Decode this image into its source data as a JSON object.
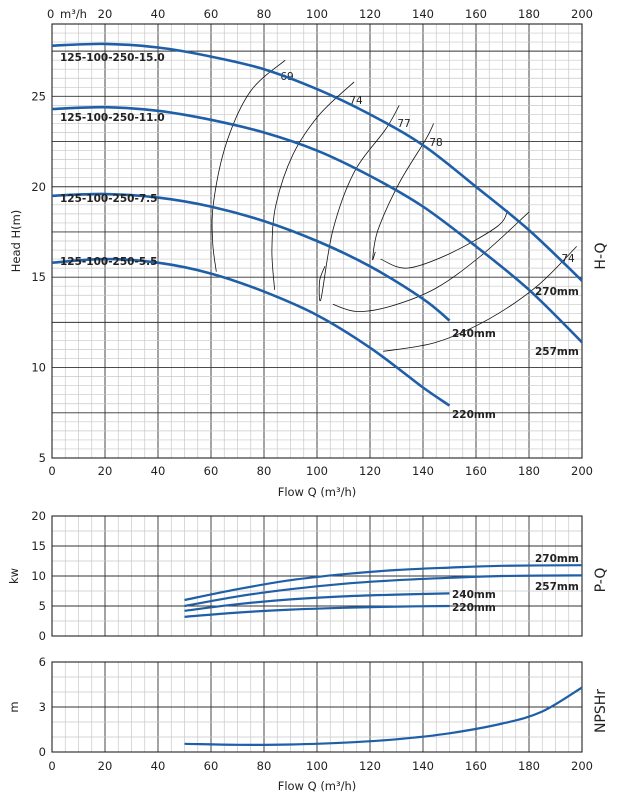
{
  "chart_data": [
    {
      "id": "hq",
      "type": "line",
      "side_title": "H-Q",
      "ylabel": "Head H(m)",
      "xlabel": "Flow Q (m³/h)",
      "top_unit": "m³/h",
      "xlim": [
        0,
        200
      ],
      "ylim": [
        5,
        29
      ],
      "x_ticks": [
        "0",
        "20",
        "40",
        "60",
        "80",
        "100",
        "120",
        "140",
        "160",
        "180",
        "200"
      ],
      "x_ticks_top": [
        "0",
        "20",
        "40",
        "60",
        "80",
        "100",
        "120",
        "140",
        "160",
        "180",
        "200"
      ],
      "y_ticks": [
        "5",
        "10",
        "15",
        "20",
        "25"
      ],
      "series": [
        {
          "name": "125-100-250-15.0",
          "impeller": "270mm",
          "line_color": "#1f5fa8",
          "x": [
            0,
            20,
            40,
            60,
            80,
            100,
            120,
            140,
            160,
            180,
            200
          ],
          "y": [
            27.8,
            27.9,
            27.7,
            27.2,
            26.5,
            25.4,
            24.0,
            22.3,
            20.0,
            17.6,
            14.8
          ]
        },
        {
          "name": "125-100-250-11.0",
          "impeller": "257mm",
          "line_color": "#1f5fa8",
          "x": [
            0,
            20,
            40,
            60,
            80,
            100,
            120,
            140,
            160,
            180,
            200
          ],
          "y": [
            24.3,
            24.4,
            24.2,
            23.7,
            23.0,
            22.0,
            20.6,
            18.9,
            16.7,
            14.3,
            11.4
          ]
        },
        {
          "name": "125-100-250-7.5",
          "impeller": "240mm",
          "line_color": "#1f5fa8",
          "x": [
            0,
            20,
            40,
            60,
            80,
            100,
            120,
            140,
            150
          ],
          "y": [
            19.5,
            19.6,
            19.4,
            18.9,
            18.1,
            17.0,
            15.6,
            13.8,
            12.6
          ]
        },
        {
          "name": "125-100-250-5.5",
          "impeller": "220mm",
          "line_color": "#1f5fa8",
          "x": [
            0,
            20,
            40,
            60,
            80,
            100,
            120,
            140,
            150
          ],
          "y": [
            15.8,
            16.0,
            15.8,
            15.2,
            14.2,
            12.9,
            11.1,
            8.9,
            7.9
          ]
        }
      ],
      "efficiency_curves": [
        {
          "label": "69",
          "x": [
            62,
            60.6,
            61,
            66,
            75,
            88
          ],
          "y": [
            15.3,
            17.0,
            19.2,
            22.5,
            25.3,
            27.0
          ]
        },
        {
          "label": "74",
          "x": [
            84,
            83,
            84.5,
            91,
            101,
            114
          ],
          "y": [
            14.3,
            16.5,
            19.0,
            21.8,
            24.0,
            25.8
          ]
        },
        {
          "label": "77",
          "x": [
            103,
            101,
            101.5,
            106,
            114,
            126,
            131
          ],
          "y": [
            15.6,
            14.8,
            13.8,
            17.6,
            20.8,
            23.2,
            24.5
          ]
        },
        {
          "label": "78",
          "x": [
            122,
            121,
            123,
            131,
            141,
            144
          ],
          "y": [
            16.4,
            16.0,
            17.6,
            20.2,
            22.6,
            23.5
          ]
        },
        {
          "label": "77",
          "x": [
            106,
            115,
            128,
            145,
            162,
            180
          ],
          "y": [
            13.5,
            13.1,
            13.4,
            14.4,
            16.2,
            18.6
          ]
        },
        {
          "label": "78",
          "x": [
            124,
            134,
            150,
            168,
            172
          ],
          "y": [
            16.0,
            15.5,
            16.3,
            17.8,
            18.7
          ]
        },
        {
          "label": "74",
          "x": [
            125,
            145,
            165,
            183,
            198
          ],
          "y": [
            10.9,
            11.4,
            12.7,
            14.5,
            16.7
          ]
        }
      ],
      "efficiency_top_labels": [
        "69",
        "74",
        "77",
        "78",
        "74"
      ]
    },
    {
      "id": "pq",
      "type": "line",
      "side_title": "P-Q",
      "ylabel": "kw",
      "xlim": [
        0,
        200
      ],
      "ylim": [
        0,
        20
      ],
      "y_ticks": [
        "0",
        "5",
        "10",
        "15",
        "20"
      ],
      "series": [
        {
          "name": "270mm",
          "x": [
            50,
            70,
            90,
            110,
            130,
            150,
            170,
            200
          ],
          "y": [
            6.0,
            7.8,
            9.3,
            10.3,
            11.0,
            11.4,
            11.7,
            11.8
          ]
        },
        {
          "name": "257mm",
          "x": [
            50,
            70,
            90,
            110,
            130,
            150,
            170,
            200
          ],
          "y": [
            5.0,
            6.6,
            7.8,
            8.7,
            9.3,
            9.7,
            10.0,
            10.1
          ]
        },
        {
          "name": "240mm",
          "x": [
            50,
            70,
            90,
            110,
            130,
            150
          ],
          "y": [
            4.2,
            5.3,
            6.1,
            6.6,
            6.9,
            7.1
          ]
        },
        {
          "name": "220mm",
          "x": [
            50,
            70,
            90,
            110,
            130,
            150
          ],
          "y": [
            3.2,
            3.9,
            4.4,
            4.7,
            4.9,
            5.0
          ]
        }
      ]
    },
    {
      "id": "npsh",
      "type": "line",
      "side_title": "NPSHr",
      "ylabel": "m",
      "xlabel": "Flow Q (m³/h)",
      "xlim": [
        0,
        200
      ],
      "ylim": [
        0,
        6
      ],
      "y_ticks": [
        "0",
        "3",
        "6"
      ],
      "x_ticks": [
        "0",
        "20",
        "40",
        "60",
        "80",
        "100",
        "120",
        "140",
        "160",
        "180",
        "200"
      ],
      "series": [
        {
          "name": "NPSHr",
          "x": [
            50,
            70,
            90,
            110,
            130,
            150,
            170,
            185,
            200
          ],
          "y": [
            0.55,
            0.48,
            0.5,
            0.62,
            0.85,
            1.25,
            1.9,
            2.7,
            4.3
          ]
        }
      ]
    }
  ],
  "colors": {
    "curve": "#1f5fa8",
    "grid_major": "#333333",
    "grid_minor": "#c8c8c8",
    "eff": "#111111"
  }
}
